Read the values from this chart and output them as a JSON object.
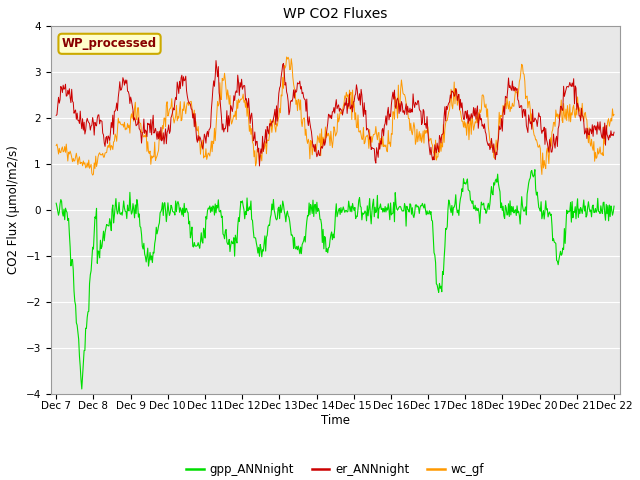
{
  "title": "WP CO2 Fluxes",
  "xlabel": "Time",
  "ylabel": "CO2 Flux (μmol/m2/s)",
  "ylim": [
    -4.0,
    4.0
  ],
  "yticks": [
    -4.0,
    -3.0,
    -2.0,
    -1.0,
    0.0,
    1.0,
    2.0,
    3.0,
    4.0
  ],
  "date_start": 7,
  "date_end": 22,
  "colors": {
    "gpp": "#00dd00",
    "er": "#cc0000",
    "wc": "#ff9900"
  },
  "legend_labels": [
    "gpp_ANNnight",
    "er_ANNnight",
    "wc_gf"
  ],
  "annotation_text": "WP_processed",
  "annotation_color": "#880000",
  "annotation_bg": "#ffffcc",
  "annotation_edge": "#ccaa00",
  "bg_color": "#e8e8e8",
  "grid_color": "#ffffff",
  "seed": 42
}
